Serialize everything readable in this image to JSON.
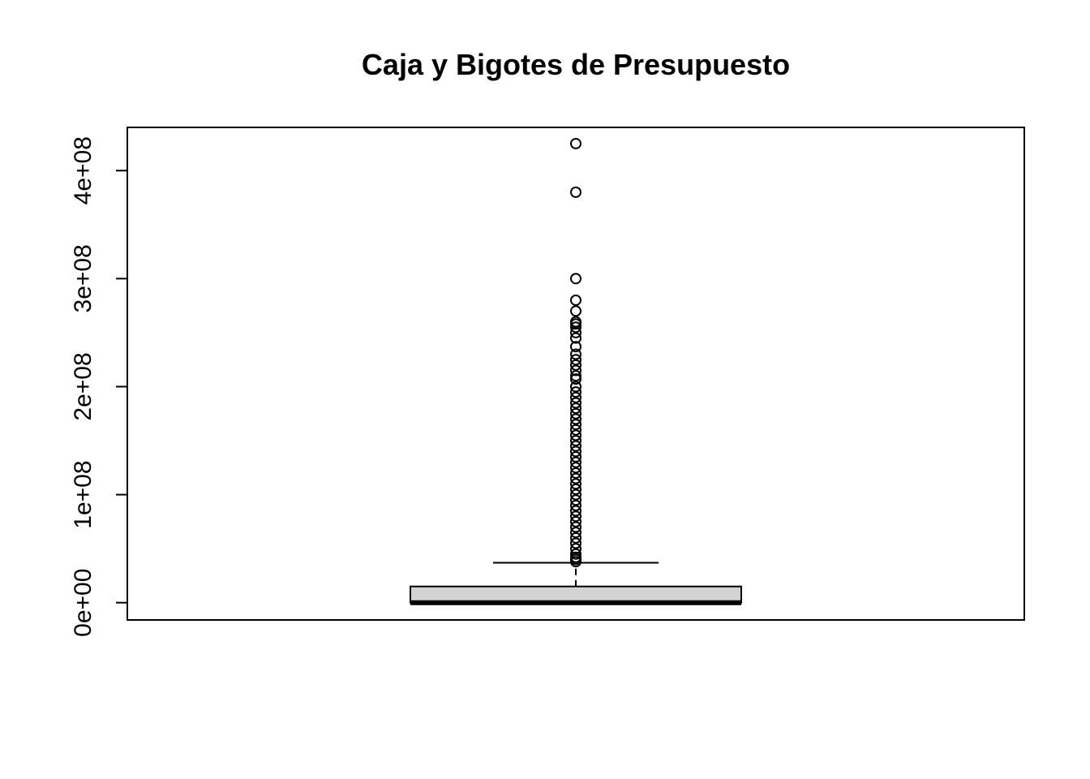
{
  "chart_data": {
    "type": "boxplot",
    "title": "Caja y Bigotes de Presupuesto",
    "xlabel": "",
    "ylabel": "",
    "ylim": [
      -16000000,
      440000000
    ],
    "y_ticks": [
      0,
      100000000,
      200000000,
      300000000,
      400000000
    ],
    "y_tick_labels": [
      "0e+00",
      "1e+08",
      "2e+08",
      "3e+08",
      "4e+08"
    ],
    "box": {
      "q1": 0,
      "median": 0,
      "q3": 15000000,
      "whisker_low": 0,
      "whisker_high": 37000000
    },
    "outliers": [
      425000000,
      380000000,
      300000000,
      280000000,
      270000000,
      260000000,
      258000000,
      255000000,
      250000000,
      245000000,
      237000000,
      230000000,
      225000000,
      220000000,
      215000000,
      210000000,
      207000000,
      200000000,
      195000000,
      190000000,
      185000000,
      180000000,
      175000000,
      170000000,
      165000000,
      160000000,
      155000000,
      150000000,
      145000000,
      140000000,
      135000000,
      130000000,
      125000000,
      120000000,
      115000000,
      110000000,
      105000000,
      100000000,
      95000000,
      90000000,
      85000000,
      80000000,
      75000000,
      70000000,
      65000000,
      60000000,
      55000000,
      50000000,
      45000000,
      42000000,
      40000000,
      38000000
    ],
    "box_fill": "#d3d3d3",
    "line_color": "#000000",
    "grid": false,
    "legend": "none"
  }
}
